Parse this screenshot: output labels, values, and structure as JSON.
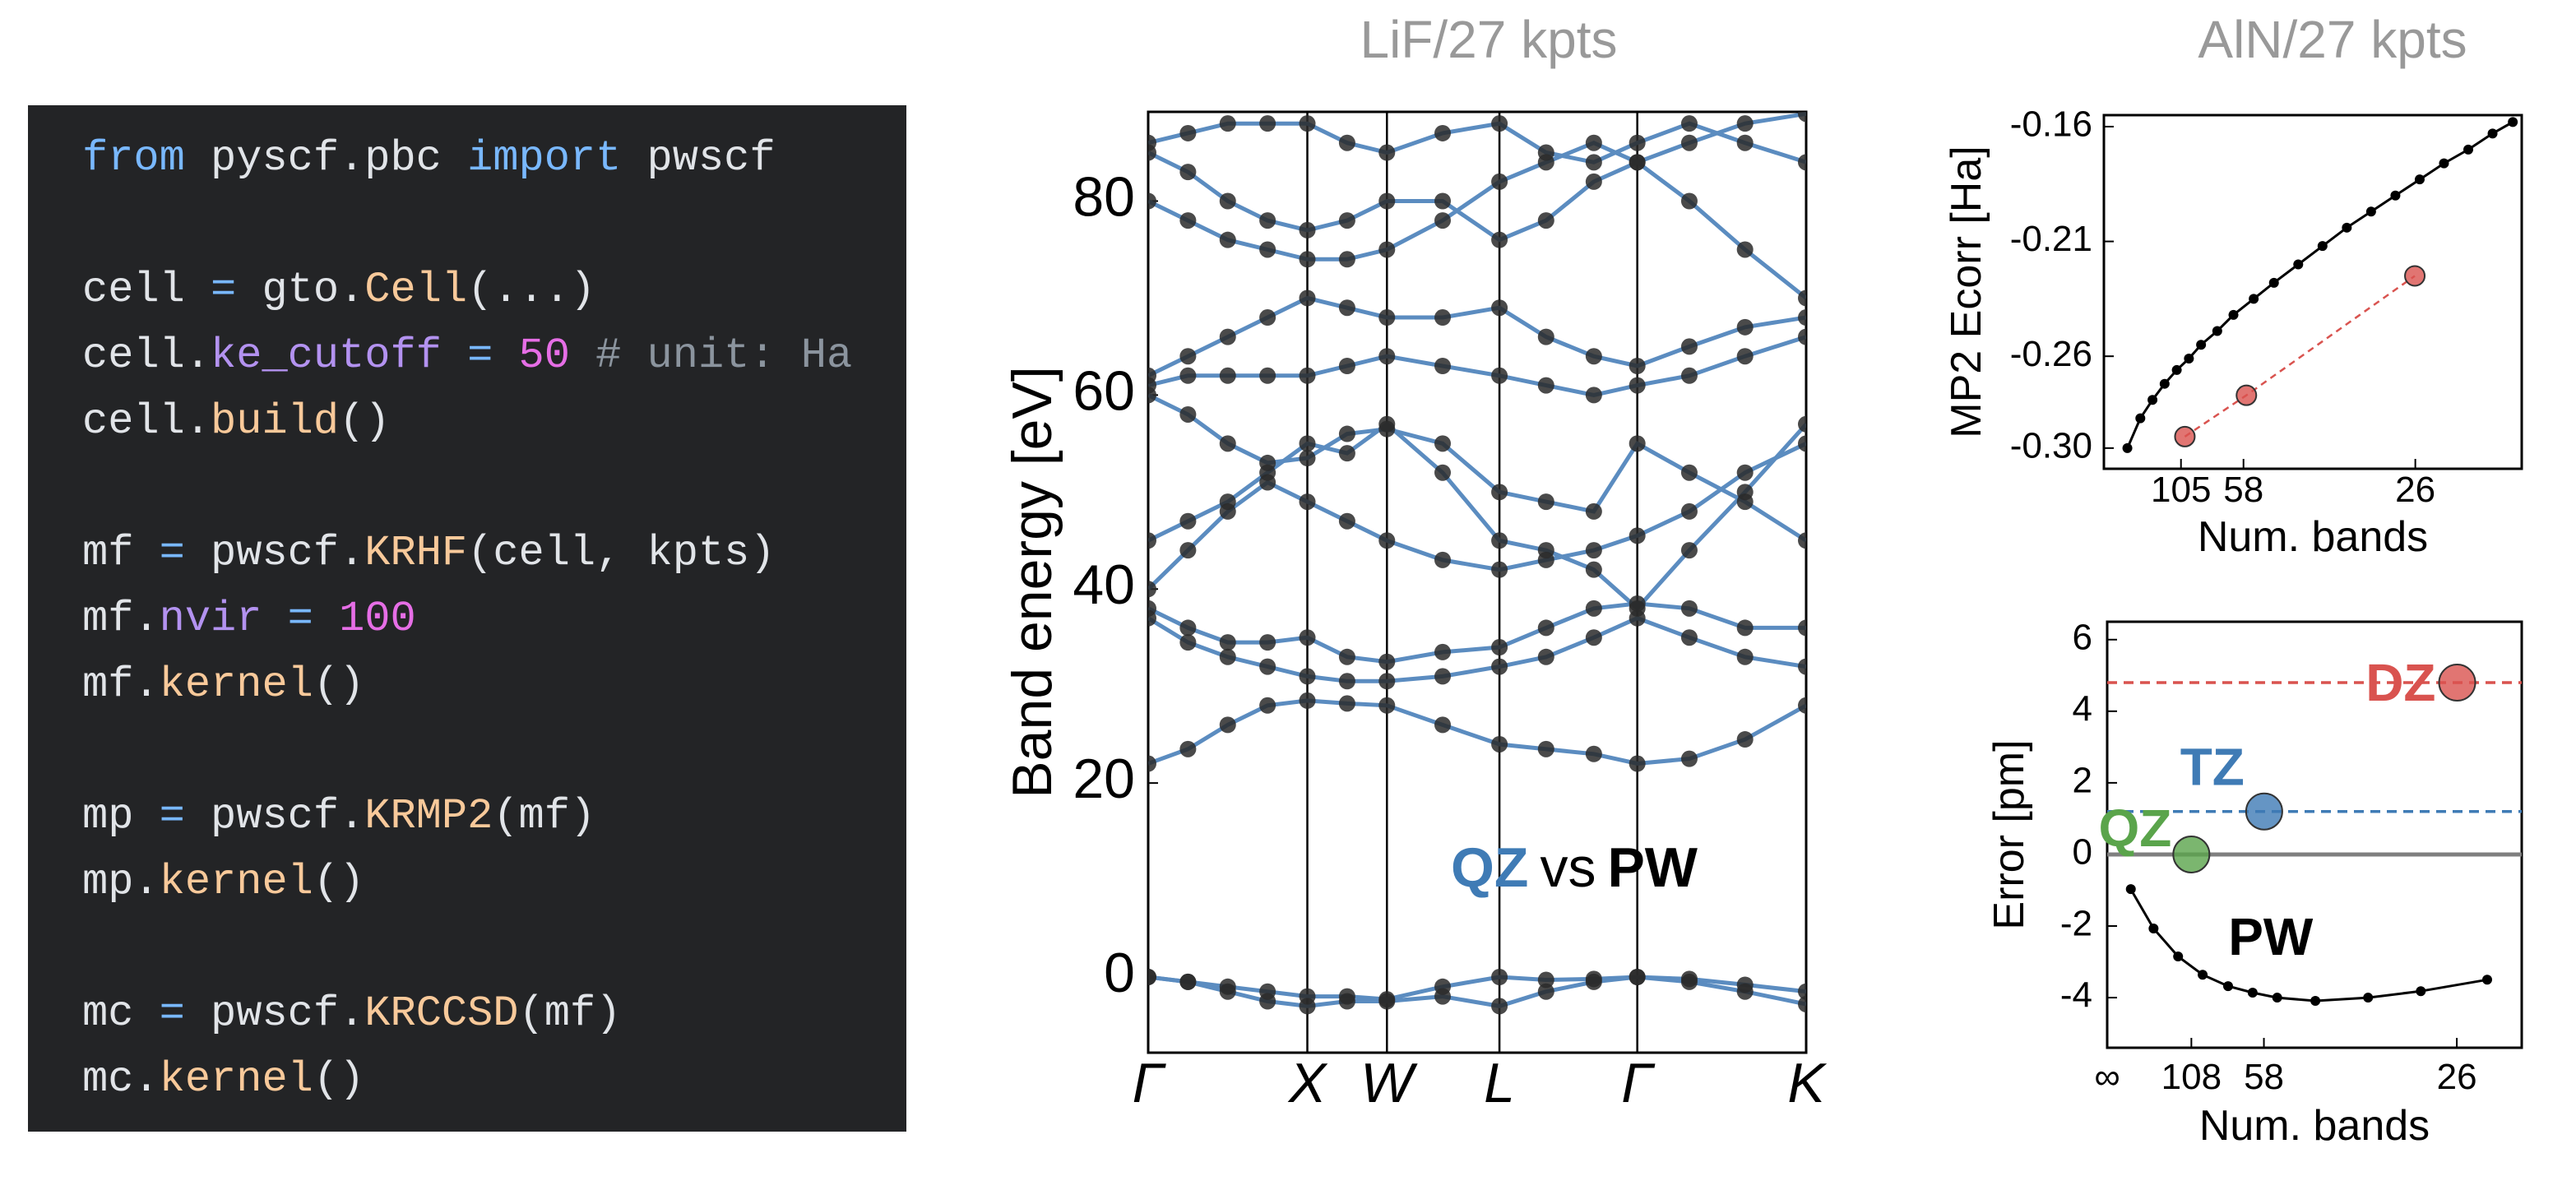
{
  "code": {
    "palette": {
      "def": "#e1e4e8",
      "kw": "#79b8ff",
      "fn": "#f8c99a",
      "attr": "#b392f0",
      "num": "#e66ee6",
      "com": "#8b949e"
    },
    "lines": [
      [
        {
          "t": "from",
          "c": "kw"
        },
        {
          "t": " pyscf.pbc ",
          "c": "def"
        },
        {
          "t": "import",
          "c": "kw"
        },
        {
          "t": " pwscf",
          "c": "def"
        }
      ],
      [],
      [
        {
          "t": "cell",
          "c": "def"
        },
        {
          "t": " = ",
          "c": "kw"
        },
        {
          "t": "gto.",
          "c": "def"
        },
        {
          "t": "Cell",
          "c": "fn"
        },
        {
          "t": "(...)",
          "c": "def"
        }
      ],
      [
        {
          "t": "cell.",
          "c": "def"
        },
        {
          "t": "ke_cutoff",
          "c": "attr"
        },
        {
          "t": " = ",
          "c": "kw"
        },
        {
          "t": "50",
          "c": "num"
        },
        {
          "t": " # unit: Ha",
          "c": "com"
        }
      ],
      [
        {
          "t": "cell.",
          "c": "def"
        },
        {
          "t": "build",
          "c": "fn"
        },
        {
          "t": "()",
          "c": "def"
        }
      ],
      [],
      [
        {
          "t": "mf",
          "c": "def"
        },
        {
          "t": " = ",
          "c": "kw"
        },
        {
          "t": "pwscf.",
          "c": "def"
        },
        {
          "t": "KRHF",
          "c": "fn"
        },
        {
          "t": "(cell, kpts)",
          "c": "def"
        }
      ],
      [
        {
          "t": "mf.",
          "c": "def"
        },
        {
          "t": "nvir",
          "c": "attr"
        },
        {
          "t": " = ",
          "c": "kw"
        },
        {
          "t": "100",
          "c": "num"
        }
      ],
      [
        {
          "t": "mf.",
          "c": "def"
        },
        {
          "t": "kernel",
          "c": "fn"
        },
        {
          "t": "()",
          "c": "def"
        }
      ],
      [],
      [
        {
          "t": "mp",
          "c": "def"
        },
        {
          "t": " = ",
          "c": "kw"
        },
        {
          "t": "pwscf.",
          "c": "def"
        },
        {
          "t": "KRMP2",
          "c": "fn"
        },
        {
          "t": "(mf)",
          "c": "def"
        }
      ],
      [
        {
          "t": "mp.",
          "c": "def"
        },
        {
          "t": "kernel",
          "c": "fn"
        },
        {
          "t": "()",
          "c": "def"
        }
      ],
      [],
      [
        {
          "t": "mc",
          "c": "def"
        },
        {
          "t": " = ",
          "c": "kw"
        },
        {
          "t": "pwscf.",
          "c": "def"
        },
        {
          "t": "KRCCSD",
          "c": "fn"
        },
        {
          "t": "(mf)",
          "c": "def"
        }
      ],
      [
        {
          "t": "mc.",
          "c": "def"
        },
        {
          "t": "kernel",
          "c": "fn"
        },
        {
          "t": "()",
          "c": "def"
        }
      ]
    ]
  },
  "chart_data": [
    {
      "type": "band",
      "title": "LiF/27 kpts",
      "y_label": "Band energy [eV]",
      "xlim": [
        0,
        4.134
      ],
      "ylim": [
        -7.8,
        89.2
      ],
      "xticks": [
        {
          "value": 0,
          "label": "Γ"
        },
        {
          "value": 1,
          "label": "X"
        },
        {
          "value": 1.5,
          "label": "W"
        },
        {
          "value": 2.207,
          "label": "L"
        },
        {
          "value": 3.073,
          "label": "Γ"
        },
        {
          "value": 4.134,
          "label": "K"
        }
      ],
      "yticks": [
        0,
        20,
        40,
        60,
        80
      ],
      "line_color": "#5b8cc0",
      "marker_color": "#2a2a2a",
      "annotation": [
        {
          "text": "QZ",
          "color": "#3f7bb5",
          "bold": true
        },
        {
          "text": "vs",
          "color": "#000000",
          "bold": false
        },
        {
          "text": "PW",
          "color": "#000000",
          "bold": true
        }
      ],
      "x": [
        0,
        0.25,
        0.5,
        0.75,
        1,
        1.25,
        1.5,
        1.85,
        2.207,
        2.5,
        2.8,
        3.073,
        3.4,
        3.75,
        4.134
      ],
      "series": [
        {
          "values": [
            0,
            -0.5,
            -1,
            -1.5,
            -2,
            -2,
            -2.3,
            -1,
            0,
            -0.3,
            -0.2,
            0,
            -0.2,
            -0.8,
            -1.5
          ]
        },
        {
          "values": [
            0,
            -0.5,
            -1.5,
            -2.5,
            -3,
            -2.5,
            -2.5,
            -2,
            -3,
            -1.5,
            -0.5,
            0,
            -0.5,
            -1.5,
            -2.8
          ]
        },
        {
          "values": [
            22,
            23.5,
            26,
            28,
            28.5,
            28.2,
            28,
            26,
            24,
            23.5,
            23,
            22,
            22.5,
            24.5,
            28
          ]
        },
        {
          "values": [
            37,
            34.5,
            33,
            32,
            31,
            30.5,
            30.5,
            31,
            32,
            33,
            35,
            37,
            35,
            33,
            32
          ]
        },
        {
          "values": [
            38,
            36,
            34.5,
            34.5,
            35,
            33,
            32.5,
            33.5,
            34,
            36,
            38,
            38.5,
            38,
            36,
            36
          ]
        },
        {
          "values": [
            40,
            44,
            48,
            51,
            49,
            47,
            45,
            43,
            42,
            43,
            44,
            45.5,
            48,
            52,
            55
          ]
        },
        {
          "values": [
            45,
            47,
            49,
            52,
            55,
            54,
            57,
            52,
            45,
            44,
            42,
            38,
            44,
            50,
            57
          ]
        },
        {
          "values": [
            60,
            58,
            55,
            53,
            53.5,
            56,
            56.5,
            55,
            50,
            49,
            48,
            55,
            52,
            49,
            45
          ]
        },
        {
          "values": [
            61,
            62,
            62,
            62,
            62,
            63,
            64,
            63,
            62,
            61,
            60,
            61,
            62,
            64,
            66
          ]
        },
        {
          "values": [
            62,
            64,
            66,
            68,
            70,
            69,
            68,
            68,
            69,
            66,
            64,
            63,
            65,
            67,
            68
          ]
        },
        {
          "values": [
            80,
            78,
            76,
            75,
            74,
            74,
            75,
            78,
            82,
            84,
            86,
            84,
            80,
            75,
            70
          ]
        },
        {
          "values": [
            85,
            83,
            80,
            78,
            77,
            78,
            80,
            80,
            76,
            78,
            82,
            84,
            86,
            88,
            89
          ]
        },
        {
          "values": [
            86,
            87,
            88,
            88,
            88,
            86,
            85,
            87,
            88,
            85,
            84,
            86,
            88,
            86,
            84
          ]
        }
      ]
    },
    {
      "type": "scatter",
      "title": "AlN/27 kpts",
      "x_label": "Num. bands",
      "y_label": "MP2 Ecorr [Ha]",
      "xlim": [
        0,
        0.0516
      ],
      "ylim": [
        -0.309,
        -0.155
      ],
      "xticks": [
        {
          "value": 0.00952,
          "label": "105"
        },
        {
          "value": 0.01724,
          "label": "58"
        },
        {
          "value": 0.03846,
          "label": "26"
        }
      ],
      "yticks": [
        -0.16,
        -0.21,
        -0.26,
        {
          "value": -0.3,
          "label": "-0.30"
        }
      ],
      "series": [
        {
          "color": "#000000",
          "style": "line-dots",
          "x": [
            0.0029,
            0.0045,
            0.006,
            0.0075,
            0.009,
            0.0105,
            0.012,
            0.014,
            0.016,
            0.0185,
            0.021,
            0.024,
            0.027,
            0.03,
            0.033,
            0.036,
            0.039,
            0.042,
            0.045,
            0.048,
            0.0505
          ],
          "values": [
            -0.3,
            -0.287,
            -0.279,
            -0.272,
            -0.266,
            -0.261,
            -0.255,
            -0.249,
            -0.242,
            -0.235,
            -0.228,
            -0.22,
            -0.212,
            -0.204,
            -0.197,
            -0.19,
            -0.183,
            -0.176,
            -0.17,
            -0.163,
            -0.158
          ]
        },
        {
          "color": "#d9534f",
          "style": "dashed-dots",
          "x": [
            0.01,
            0.0176,
            0.0384
          ],
          "values": [
            -0.295,
            -0.277,
            -0.225
          ]
        }
      ]
    },
    {
      "type": "scatter",
      "x_label": "Num. bands",
      "y_label": "Error [pm]",
      "xlim": [
        0,
        0.0456
      ],
      "ylim": [
        -5.4,
        6.5
      ],
      "xticks": [
        {
          "value": 0,
          "label": "∞"
        },
        {
          "value": 0.00926,
          "label": "108"
        },
        {
          "value": 0.01724,
          "label": "58"
        },
        {
          "value": 0.03846,
          "label": "26"
        }
      ],
      "yticks": [
        -4,
        -2,
        0,
        2,
        4,
        6
      ],
      "zero_line": true,
      "series": [
        {
          "name": "PW",
          "color": "#000000",
          "style": "line-dots",
          "x": [
            0.0026,
            0.0051,
            0.0078,
            0.0105,
            0.0133,
            0.016,
            0.0187,
            0.0229,
            0.0287,
            0.0345,
            0.0418
          ],
          "values": [
            -0.97,
            -2.07,
            -2.85,
            -3.36,
            -3.68,
            -3.86,
            -4.0,
            -4.09,
            -4.0,
            -3.82,
            -3.5
          ]
        },
        {
          "name": "QZ",
          "color": "#5aa44b",
          "style": "big-dot",
          "x": [
            0.00926
          ],
          "values": [
            0
          ]
        },
        {
          "name": "TZ",
          "color": "#3f7bb5",
          "style": "big-dot",
          "hline": "dashed",
          "x": [
            0.01727
          ],
          "values": [
            1.2
          ]
        },
        {
          "name": "DZ",
          "color": "#d9534f",
          "style": "big-dot",
          "hline": "dashed",
          "x": [
            0.0385
          ],
          "values": [
            4.8
          ]
        }
      ]
    }
  ]
}
